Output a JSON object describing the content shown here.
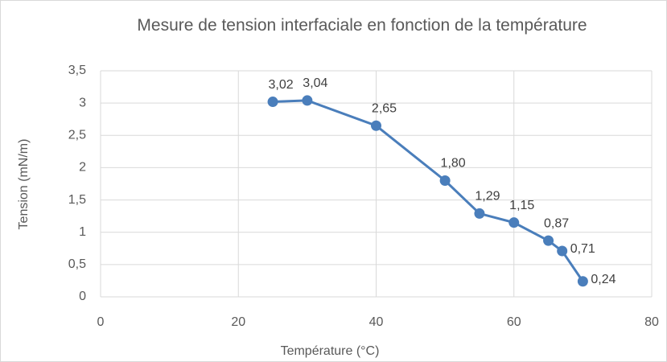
{
  "chart_data": {
    "type": "scatter-line",
    "title": "Mesure de tension interfaciale en fonction de la température",
    "x_label": "Température (°C)",
    "y_label": "Tension (mN/m)",
    "x": [
      25,
      30,
      40,
      50,
      55,
      60,
      65,
      67,
      70
    ],
    "values": [
      3.02,
      3.04,
      2.65,
      1.8,
      1.29,
      1.15,
      0.87,
      0.71,
      0.24
    ],
    "value_labels": [
      "3,02",
      "3,04",
      "2,65",
      "1,80",
      "1,29",
      "1,15",
      "0,87",
      "0,71",
      "0,24"
    ],
    "color": "#4a7ebb",
    "xlim": [
      0,
      80
    ],
    "xticks": [
      0,
      20,
      40,
      60,
      80
    ],
    "ylim": [
      0,
      3.5
    ],
    "yticks": [
      0,
      {
        "value": 0.5,
        "label": "0,5"
      },
      1,
      {
        "value": 1.5,
        "label": "1,5"
      },
      2,
      {
        "value": 2.5,
        "label": "2,5"
      },
      3,
      {
        "value": 3.5,
        "label": "3,5"
      }
    ],
    "grid": true
  }
}
